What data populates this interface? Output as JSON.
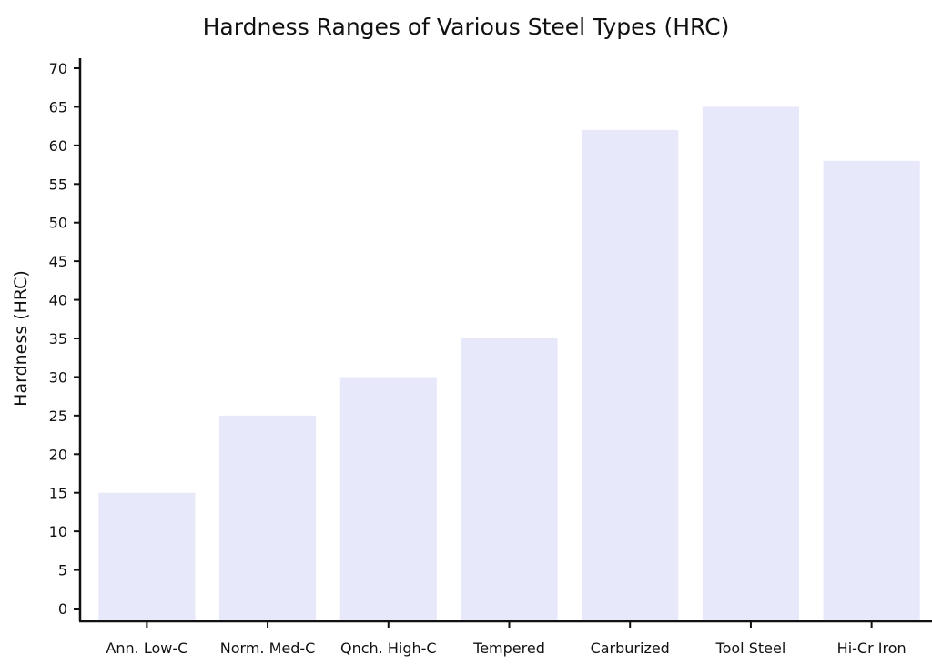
{
  "chart_data": {
    "type": "bar",
    "title": "Hardness Ranges of Various Steel Types (HRC)",
    "xlabel": "",
    "ylabel": "Hardness (HRC)",
    "categories": [
      "Ann. Low-C",
      "Norm. Med-C",
      "Qnch. High-C",
      "Tempered",
      "Carburized",
      "Tool Steel",
      "Hi-Cr Iron"
    ],
    "values": [
      15,
      25,
      30,
      35,
      62,
      65,
      58
    ],
    "ylim": [
      0,
      70
    ],
    "yticks": [
      0,
      5,
      10,
      15,
      20,
      25,
      30,
      35,
      40,
      45,
      50,
      55,
      60,
      65,
      70
    ],
    "grid": false,
    "bar_color": "#e8e8fb",
    "axis_color": "#111111"
  }
}
